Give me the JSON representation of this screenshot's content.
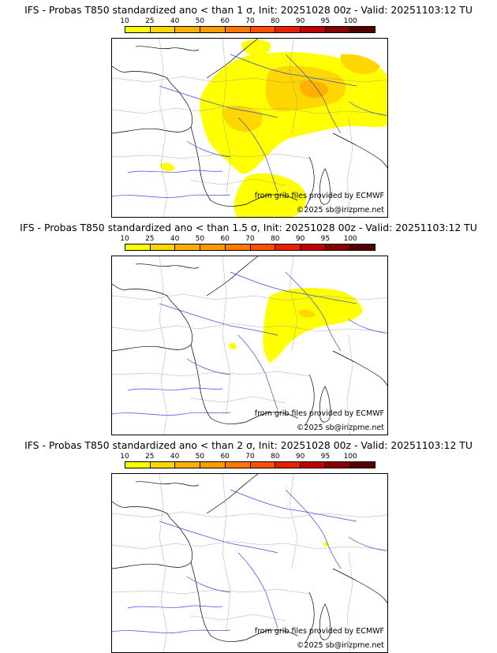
{
  "colorbar": {
    "labels": [
      "10",
      "25",
      "40",
      "50",
      "60",
      "70",
      "80",
      "90",
      "95",
      "100"
    ],
    "colors": [
      "#ffff00",
      "#ffd700",
      "#ffb000",
      "#ff9a00",
      "#ff7800",
      "#ff5000",
      "#e82000",
      "#c00000",
      "#8a0000",
      "#550000"
    ]
  },
  "panels": [
    {
      "title": "IFS - Probas T850  standardized ano < than 1 σ, Init: 20251028 00z - Valid: 20251103:12 TU",
      "credit_source": "from grib files provided by ECMWF",
      "credit_copyright": "©2025 sb@irizpme.net"
    },
    {
      "title": "IFS - Probas T850  standardized ano < than 1.5 σ, Init: 20251028 00z - Valid: 20251103:12 TU",
      "credit_source": "from grib files provided by ECMWF",
      "credit_copyright": "©2025 sb@irizpme.net"
    },
    {
      "title": "IFS - Probas T850  standardized ano < than 2 σ, Init: 20251028 00z - Valid: 20251103:12 TU",
      "credit_source": "from grib files provided by ECMWF",
      "credit_copyright": "©2025 sb@irizpme.net"
    }
  ]
}
